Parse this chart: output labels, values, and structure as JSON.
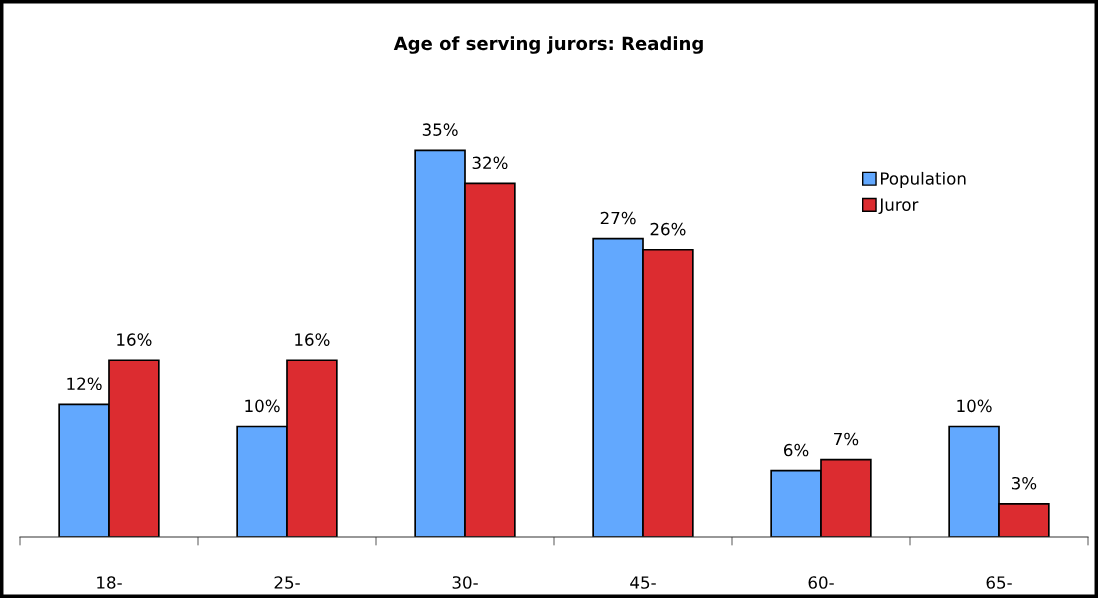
{
  "chart_data": {
    "type": "bar",
    "title": "Age of serving jurors: Reading",
    "categories": [
      "18-",
      "25-",
      "30-",
      "45-",
      "60-",
      "65-"
    ],
    "series": [
      {
        "name": "Population",
        "color": "#62a8fe",
        "values": [
          12,
          10,
          35,
          27,
          6,
          10
        ],
        "value_labels": [
          "12%",
          "10%",
          "35%",
          "27%",
          "6%",
          "10%"
        ]
      },
      {
        "name": "Juror",
        "color": "#dc2c30",
        "values": [
          16,
          16,
          32,
          26,
          7,
          3
        ],
        "value_labels": [
          "16%",
          "16%",
          "32%",
          "26%",
          "7%",
          "3%"
        ]
      }
    ],
    "legend": "top right",
    "grid": false
  }
}
